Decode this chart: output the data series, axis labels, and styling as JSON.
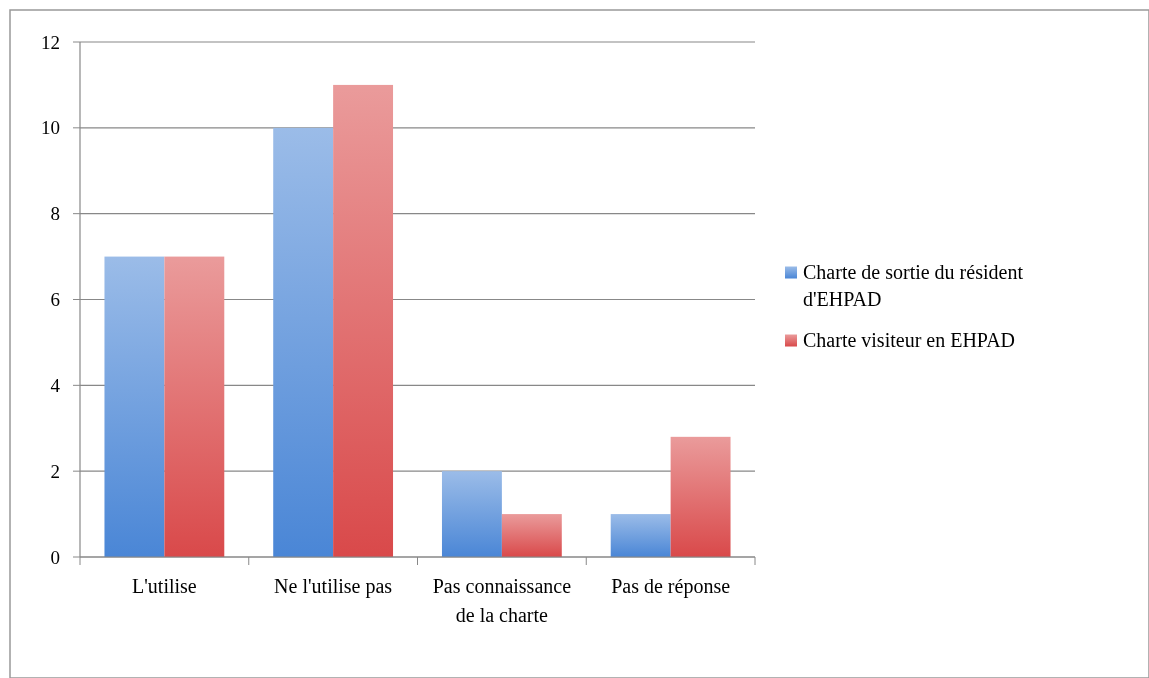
{
  "chart_data": {
    "type": "bar",
    "categories": [
      "L'utilise",
      "Ne l'utilise pas",
      "Pas connaissance de la charte",
      "Pas de réponse"
    ],
    "series": [
      {
        "name": "Charte de sortie du résident d'EHPAD",
        "color": "#4a86d6",
        "values": [
          7,
          10,
          2,
          1
        ]
      },
      {
        "name": "Charte visiteur en EHPAD",
        "color": "#d9494a",
        "values": [
          7,
          11,
          1,
          2.8
        ]
      }
    ],
    "ylim": [
      0,
      12
    ],
    "yticks": [
      0,
      2,
      4,
      6,
      8,
      10,
      12
    ],
    "grid": "y",
    "legend": "right"
  }
}
